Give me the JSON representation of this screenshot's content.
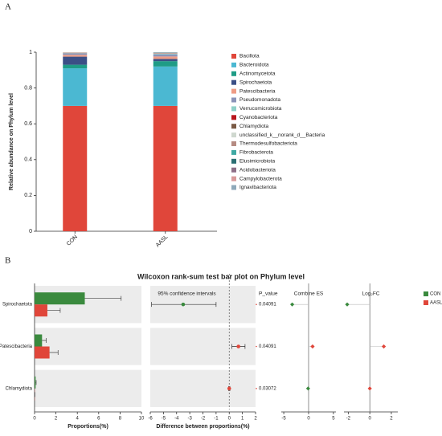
{
  "chart_data": [
    {
      "type": "bar",
      "stacked": true,
      "panel": "A",
      "ylabel": "Relative abundance on Phylum level",
      "categories": [
        "CON",
        "AASL"
      ],
      "ylim": [
        0,
        1
      ],
      "yticks": [
        0,
        0.2,
        0.4,
        0.6,
        0.8,
        1
      ],
      "series": [
        {
          "name": "Bacillota",
          "color": "#e0463a",
          "values": [
            0.7,
            0.7
          ]
        },
        {
          "name": "Bacteroidota",
          "color": "#4bb8d2",
          "values": [
            0.21,
            0.22
          ]
        },
        {
          "name": "Actinomycetota",
          "color": "#1f9c86",
          "values": [
            0.02,
            0.03
          ]
        },
        {
          "name": "Spirochaetota",
          "color": "#3b4f86",
          "values": [
            0.045,
            0.012
          ]
        },
        {
          "name": "Patescibacteria",
          "color": "#ef9c85",
          "values": [
            0.01,
            0.014
          ]
        },
        {
          "name": "Pseudomonadota",
          "color": "#8b93b8",
          "values": [
            0.008,
            0.012
          ]
        },
        {
          "name": "Verrucomicrobiota",
          "color": "#8fd0c8",
          "values": [
            0.002,
            0.004
          ]
        },
        {
          "name": "Cyanobacteriota",
          "color": "#b8151c",
          "values": [
            0.001,
            0.001
          ]
        },
        {
          "name": "Chlamydiota",
          "color": "#7a5a45",
          "values": [
            0.001,
            0.001
          ]
        },
        {
          "name": "unclassified_k__norank_d__Bacteria",
          "color": "#cfd8cf",
          "values": [
            0.001,
            0.001
          ]
        },
        {
          "name": "Thermodesulfobacteriota",
          "color": "#b58b82",
          "values": [
            0.001,
            0.001
          ]
        },
        {
          "name": "Fibrobacterota",
          "color": "#3fa9a3",
          "values": [
            0,
            0.001
          ]
        },
        {
          "name": "Elusimicrobiota",
          "color": "#2c6f73",
          "values": [
            0,
            0.001
          ]
        },
        {
          "name": "Acidobacteriota",
          "color": "#8e6f87",
          "values": [
            0,
            0.001
          ]
        },
        {
          "name": "Campylobacterota",
          "color": "#d99a9a",
          "values": [
            0,
            0
          ]
        },
        {
          "name": "Ignavibacteriota",
          "color": "#8fa9ba",
          "values": [
            0,
            0
          ]
        }
      ]
    },
    {
      "type": "wilcoxon",
      "panel": "B",
      "title": "Wilcoxon rank-sum test bar plot on Phylum level",
      "categories": [
        "Spirochaetota",
        "Patescibacteria",
        "Chlamydiota"
      ],
      "xlabel": "Proportions(%)",
      "xlim": [
        0,
        10
      ],
      "xticks": [
        0,
        2,
        4,
        6,
        8,
        10
      ],
      "series": [
        {
          "name": "CON",
          "color": "#3a8a3e",
          "values": [
            4.7,
            0.7,
            0.1
          ],
          "errors": [
            3.4,
            0.4,
            0.05
          ]
        },
        {
          "name": "AASL",
          "color": "#e0463a",
          "values": [
            1.2,
            1.4,
            0.02
          ],
          "errors": [
            1.2,
            0.8,
            0.01
          ]
        }
      ],
      "diff": {
        "title": "95% confidence intervals",
        "xlabel": "Difference between proportions(%)",
        "values": [
          -3.5,
          0.7,
          0.0
        ],
        "ci_low": [
          -5.9,
          0.2,
          -0.05
        ],
        "ci_high": [
          -1.0,
          1.2,
          0.05
        ],
        "xlim": [
          -6,
          2
        ],
        "xticks": [
          -6,
          -5,
          -4,
          -3,
          -2,
          -1,
          0,
          1,
          2
        ]
      },
      "p_value": {
        "title": "P_value",
        "values": [
          0.04091,
          0.04091,
          0.03072
        ]
      },
      "combine_es": {
        "title": "Combine ES",
        "values": [
          -3.3,
          0.8,
          -0.1
        ],
        "xlim": [
          -5.5,
          5.5
        ],
        "xticks": [
          -5,
          0,
          5
        ]
      },
      "log2fc": {
        "title": "Log₂FC",
        "values": [
          -2.1,
          1.3,
          0.0
        ],
        "xlim": [
          -2.4,
          2.6
        ],
        "xticks": [
          -2,
          0,
          2
        ]
      }
    }
  ]
}
